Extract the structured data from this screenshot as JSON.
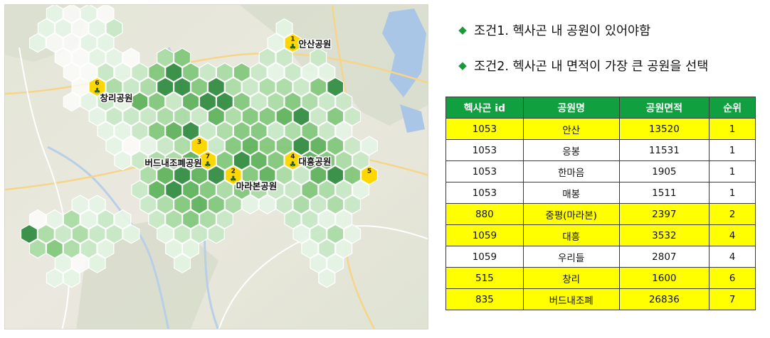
{
  "colors": {
    "header_bg": "#10a040",
    "highlight_row": "#ffff00",
    "plain_row": "#ffffff",
    "hex_yellow": "#ffd700",
    "hex_palette": [
      "#ffffff",
      "#e4f4e4",
      "#c7e8c5",
      "#a8dba4",
      "#7fc77a",
      "#5cb25a",
      "#2e8b3e"
    ],
    "diamond": "#1a9a3a"
  },
  "conditions": [
    {
      "icon": "diamond-icon",
      "text": "조건1. 헥사곤 내 공원이 있어야함"
    },
    {
      "icon": "diamond-icon",
      "text": "조건2. 헥사곤 내 면적이 가장 큰 공원을 선택"
    }
  ],
  "table": {
    "headers": [
      "헥사곤 id",
      "공원명",
      "공원면적",
      "순위"
    ],
    "rows": [
      {
        "cells": [
          "1053",
          "안산",
          "13520",
          "1"
        ],
        "highlight": true
      },
      {
        "cells": [
          "1053",
          "응봉",
          "11531",
          "1"
        ],
        "highlight": false
      },
      {
        "cells": [
          "1053",
          "한마음",
          "1905",
          "1"
        ],
        "highlight": false
      },
      {
        "cells": [
          "1053",
          "매봉",
          "1511",
          "1"
        ],
        "highlight": false
      },
      {
        "cells": [
          "880",
          "중평(마라본)",
          "2397",
          "2"
        ],
        "highlight": true
      },
      {
        "cells": [
          "1059",
          "대흥",
          "3532",
          "4"
        ],
        "highlight": true
      },
      {
        "cells": [
          "1059",
          "우리들",
          "2807",
          "4"
        ],
        "highlight": false
      },
      {
        "cells": [
          "515",
          "창리",
          "1600",
          "6"
        ],
        "highlight": true
      },
      {
        "cells": [
          "835",
          "버드내조폐",
          "26836",
          "7"
        ],
        "highlight": true
      }
    ]
  },
  "map": {
    "ranked_hexes": [
      {
        "rank": "1",
        "col": 16,
        "row": 2
      },
      {
        "rank": "2",
        "col": 12,
        "row": 11
      },
      {
        "rank": "3",
        "col": 10,
        "row": 9
      },
      {
        "rank": "4",
        "col": 16,
        "row": 10
      },
      {
        "rank": "5",
        "col": 20,
        "row": 11
      },
      {
        "rank": "6",
        "col": 4,
        "row": 5
      },
      {
        "rank": "7",
        "col": 11,
        "row": 10
      }
    ],
    "park_labels": [
      {
        "text": "안산공원",
        "rank": "1",
        "anchor": "right"
      },
      {
        "text": "창리공원",
        "rank": "6",
        "anchor": "below-right"
      },
      {
        "text": "대흥공원",
        "rank": "4",
        "anchor": "right"
      },
      {
        "text": "버드내조폐공원",
        "rank": "7",
        "anchor": "left"
      },
      {
        "text": "마라본공원",
        "rank": "2",
        "anchor": "below-right"
      }
    ],
    "green_hexes": [
      [
        2,
        0,
        1
      ],
      [
        3,
        0,
        0
      ],
      [
        4,
        0,
        1
      ],
      [
        5,
        0,
        0
      ],
      [
        1,
        1,
        1
      ],
      [
        2,
        1,
        1
      ],
      [
        3,
        1,
        0
      ],
      [
        4,
        1,
        1
      ],
      [
        5,
        1,
        2
      ],
      [
        15,
        1,
        1
      ],
      [
        1,
        2,
        1
      ],
      [
        2,
        2,
        0
      ],
      [
        3,
        2,
        0
      ],
      [
        4,
        2,
        1
      ],
      [
        5,
        2,
        1
      ],
      [
        15,
        2,
        1
      ],
      [
        2,
        3,
        0
      ],
      [
        3,
        3,
        0
      ],
      [
        4,
        3,
        1
      ],
      [
        5,
        3,
        1
      ],
      [
        6,
        3,
        0
      ],
      [
        8,
        3,
        3
      ],
      [
        9,
        3,
        4
      ],
      [
        14,
        3,
        2
      ],
      [
        15,
        3,
        2
      ],
      [
        17,
        3,
        2
      ],
      [
        3,
        4,
        0
      ],
      [
        4,
        4,
        0
      ],
      [
        5,
        4,
        2
      ],
      [
        6,
        4,
        1
      ],
      [
        7,
        4,
        2
      ],
      [
        8,
        4,
        4
      ],
      [
        9,
        4,
        6
      ],
      [
        10,
        4,
        4
      ],
      [
        11,
        4,
        2
      ],
      [
        12,
        4,
        3
      ],
      [
        13,
        4,
        4
      ],
      [
        14,
        4,
        2
      ],
      [
        15,
        4,
        1
      ],
      [
        16,
        4,
        2
      ],
      [
        17,
        4,
        1
      ],
      [
        18,
        4,
        1
      ],
      [
        3,
        5,
        0
      ],
      [
        5,
        5,
        3
      ],
      [
        6,
        5,
        2
      ],
      [
        7,
        5,
        3
      ],
      [
        8,
        5,
        6
      ],
      [
        9,
        5,
        6
      ],
      [
        10,
        5,
        4
      ],
      [
        11,
        5,
        6
      ],
      [
        12,
        5,
        3
      ],
      [
        13,
        5,
        2
      ],
      [
        14,
        5,
        3
      ],
      [
        15,
        5,
        3
      ],
      [
        16,
        5,
        2
      ],
      [
        17,
        5,
        4
      ],
      [
        18,
        5,
        6
      ],
      [
        3,
        6,
        0
      ],
      [
        4,
        6,
        1
      ],
      [
        5,
        6,
        2
      ],
      [
        6,
        6,
        1
      ],
      [
        7,
        6,
        5
      ],
      [
        8,
        6,
        4
      ],
      [
        9,
        6,
        2
      ],
      [
        10,
        6,
        5
      ],
      [
        11,
        6,
        6
      ],
      [
        12,
        6,
        6
      ],
      [
        13,
        6,
        4
      ],
      [
        14,
        6,
        2
      ],
      [
        15,
        6,
        3
      ],
      [
        16,
        6,
        4
      ],
      [
        17,
        6,
        3
      ],
      [
        18,
        6,
        2
      ],
      [
        19,
        6,
        2
      ],
      [
        4,
        7,
        1
      ],
      [
        5,
        7,
        2
      ],
      [
        6,
        7,
        2
      ],
      [
        7,
        7,
        2
      ],
      [
        8,
        7,
        3
      ],
      [
        9,
        7,
        3
      ],
      [
        10,
        7,
        2
      ],
      [
        11,
        7,
        5
      ],
      [
        12,
        7,
        3
      ],
      [
        13,
        7,
        4
      ],
      [
        14,
        7,
        4
      ],
      [
        15,
        7,
        5
      ],
      [
        16,
        7,
        6
      ],
      [
        17,
        7,
        2
      ],
      [
        18,
        7,
        4
      ],
      [
        19,
        7,
        2
      ],
      [
        5,
        8,
        1
      ],
      [
        6,
        8,
        1
      ],
      [
        7,
        8,
        2
      ],
      [
        8,
        8,
        4
      ],
      [
        9,
        8,
        5
      ],
      [
        10,
        8,
        6
      ],
      [
        11,
        8,
        2
      ],
      [
        12,
        8,
        3
      ],
      [
        13,
        8,
        4
      ],
      [
        14,
        8,
        4
      ],
      [
        15,
        8,
        2
      ],
      [
        16,
        8,
        3
      ],
      [
        17,
        8,
        4
      ],
      [
        18,
        8,
        2
      ],
      [
        19,
        8,
        1
      ],
      [
        5,
        9,
        1
      ],
      [
        6,
        9,
        0
      ],
      [
        7,
        9,
        1
      ],
      [
        8,
        9,
        2
      ],
      [
        9,
        9,
        3
      ],
      [
        11,
        9,
        2
      ],
      [
        12,
        9,
        4
      ],
      [
        13,
        9,
        5
      ],
      [
        14,
        9,
        4
      ],
      [
        15,
        9,
        4
      ],
      [
        16,
        9,
        6
      ],
      [
        17,
        9,
        5
      ],
      [
        18,
        9,
        4
      ],
      [
        19,
        9,
        2
      ],
      [
        20,
        9,
        1
      ],
      [
        6,
        10,
        1
      ],
      [
        7,
        10,
        2
      ],
      [
        8,
        10,
        3
      ],
      [
        9,
        10,
        3
      ],
      [
        10,
        10,
        5
      ],
      [
        12,
        10,
        4
      ],
      [
        13,
        10,
        6
      ],
      [
        14,
        10,
        5
      ],
      [
        15,
        10,
        4
      ],
      [
        17,
        10,
        5
      ],
      [
        18,
        10,
        4
      ],
      [
        19,
        10,
        3
      ],
      [
        20,
        10,
        2
      ],
      [
        7,
        11,
        3
      ],
      [
        8,
        11,
        5
      ],
      [
        9,
        11,
        6
      ],
      [
        10,
        11,
        5
      ],
      [
        11,
        11,
        6
      ],
      [
        13,
        11,
        4
      ],
      [
        14,
        11,
        5
      ],
      [
        15,
        11,
        3
      ],
      [
        16,
        11,
        2
      ],
      [
        17,
        11,
        5
      ],
      [
        18,
        11,
        6
      ],
      [
        19,
        11,
        4
      ],
      [
        7,
        12,
        2
      ],
      [
        8,
        12,
        5
      ],
      [
        9,
        12,
        6
      ],
      [
        10,
        12,
        5
      ],
      [
        11,
        12,
        4
      ],
      [
        12,
        12,
        3
      ],
      [
        13,
        12,
        4
      ],
      [
        14,
        12,
        3
      ],
      [
        15,
        12,
        2
      ],
      [
        16,
        12,
        2
      ],
      [
        17,
        12,
        4
      ],
      [
        18,
        12,
        3
      ],
      [
        19,
        12,
        2
      ],
      [
        20,
        12,
        1
      ],
      [
        3,
        13,
        1
      ],
      [
        4,
        13,
        1
      ],
      [
        7,
        13,
        2
      ],
      [
        8,
        13,
        3
      ],
      [
        9,
        13,
        4
      ],
      [
        10,
        13,
        5
      ],
      [
        11,
        13,
        4
      ],
      [
        12,
        13,
        3
      ],
      [
        13,
        13,
        1
      ],
      [
        14,
        13,
        1
      ],
      [
        15,
        13,
        2
      ],
      [
        16,
        13,
        3
      ],
      [
        17,
        13,
        2
      ],
      [
        18,
        13,
        3
      ],
      [
        19,
        13,
        2
      ],
      [
        1,
        14,
        0
      ],
      [
        2,
        14,
        1
      ],
      [
        3,
        14,
        3
      ],
      [
        4,
        14,
        1
      ],
      [
        5,
        14,
        2
      ],
      [
        6,
        14,
        1
      ],
      [
        8,
        14,
        2
      ],
      [
        9,
        14,
        3
      ],
      [
        10,
        14,
        4
      ],
      [
        11,
        14,
        3
      ],
      [
        12,
        14,
        2
      ],
      [
        16,
        14,
        2
      ],
      [
        17,
        14,
        2
      ],
      [
        18,
        14,
        1
      ],
      [
        19,
        14,
        1
      ],
      [
        0,
        15,
        6
      ],
      [
        1,
        15,
        3
      ],
      [
        2,
        15,
        2
      ],
      [
        3,
        15,
        3
      ],
      [
        4,
        15,
        2
      ],
      [
        5,
        15,
        2
      ],
      [
        6,
        15,
        1
      ],
      [
        8,
        15,
        1
      ],
      [
        9,
        15,
        2
      ],
      [
        10,
        15,
        2
      ],
      [
        11,
        15,
        2
      ],
      [
        16,
        15,
        1
      ],
      [
        17,
        15,
        2
      ],
      [
        18,
        15,
        3
      ],
      [
        19,
        15,
        1
      ],
      [
        1,
        16,
        3
      ],
      [
        2,
        16,
        4
      ],
      [
        3,
        16,
        3
      ],
      [
        4,
        16,
        2
      ],
      [
        5,
        16,
        1
      ],
      [
        9,
        16,
        1
      ],
      [
        10,
        16,
        1
      ],
      [
        17,
        16,
        1
      ],
      [
        18,
        16,
        2
      ],
      [
        19,
        16,
        1
      ],
      [
        2,
        17,
        1
      ],
      [
        3,
        17,
        0
      ],
      [
        4,
        17,
        1
      ],
      [
        9,
        17,
        1
      ],
      [
        17,
        17,
        1
      ],
      [
        18,
        17,
        1
      ],
      [
        2,
        18,
        1
      ],
      [
        3,
        18,
        1
      ],
      [
        18,
        18,
        1
      ]
    ]
  }
}
